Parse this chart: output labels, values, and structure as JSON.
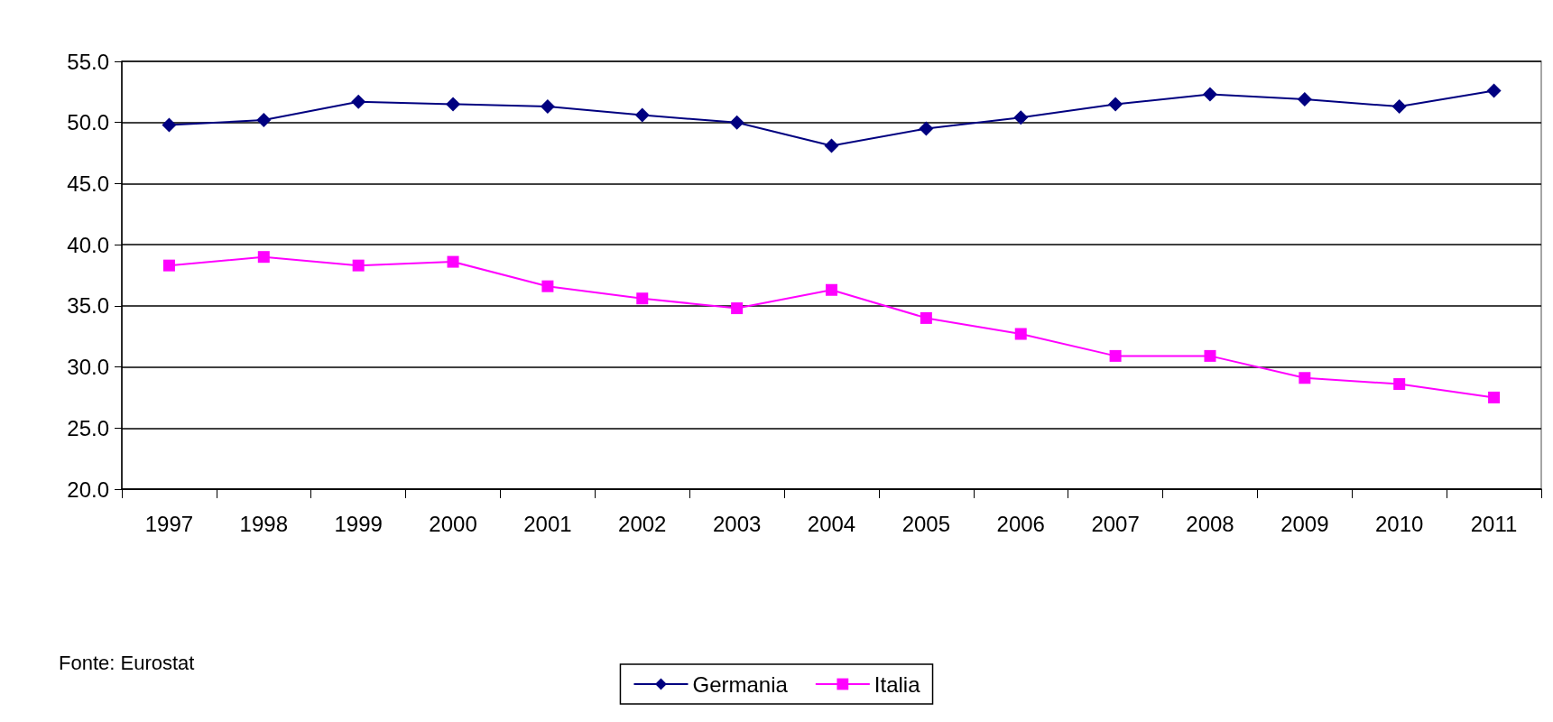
{
  "chart_data": {
    "type": "line",
    "categories": [
      "1997",
      "1998",
      "1999",
      "2000",
      "2001",
      "2002",
      "2003",
      "2004",
      "2005",
      "2006",
      "2007",
      "2008",
      "2009",
      "2010",
      "2011"
    ],
    "series": [
      {
        "name": "Germania",
        "color": "#000080",
        "marker": "diamond",
        "values": [
          49.8,
          50.2,
          51.7,
          51.5,
          51.3,
          50.6,
          50.0,
          48.1,
          49.5,
          50.4,
          51.5,
          52.3,
          51.9,
          51.3,
          52.6
        ]
      },
      {
        "name": "Italia",
        "color": "#ff00ff",
        "marker": "square",
        "values": [
          38.3,
          39.0,
          38.3,
          38.6,
          36.6,
          35.6,
          34.8,
          36.3,
          34.0,
          32.7,
          30.9,
          30.9,
          29.1,
          28.6,
          27.5
        ]
      }
    ],
    "ylim": [
      20,
      55
    ],
    "yticks": [
      {
        "value": 20,
        "label": "20.0"
      },
      {
        "value": 25,
        "label": "25.0"
      },
      {
        "value": 30,
        "label": "30.0"
      },
      {
        "value": 35,
        "label": "35.0"
      },
      {
        "value": 40,
        "label": "40.0"
      },
      {
        "value": 45,
        "label": "45.0"
      },
      {
        "value": 50,
        "label": "50.0"
      },
      {
        "value": 55,
        "label": "55.0"
      }
    ],
    "grid": "y",
    "legend": "bottom",
    "line_style": "solid",
    "annotations": [
      "Fonte: Eurostat"
    ]
  }
}
